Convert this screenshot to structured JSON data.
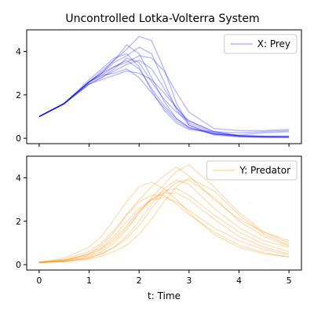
{
  "title": "Uncontrolled Lotka-Volterra System",
  "colors": {
    "prey": "#0000ff",
    "predator": "#ff8c00",
    "axis": "#000000"
  },
  "chart_data": [
    {
      "type": "line",
      "title": "Uncontrolled Lotka-Volterra System",
      "legend": {
        "label": "X: Prey",
        "placement": "top-right"
      },
      "xlabel": "",
      "ylabel": "",
      "xlim": [
        -0.25,
        5.25
      ],
      "ylim": [
        -0.25,
        5.0
      ],
      "x_ticks": [
        0,
        1,
        2,
        3,
        4,
        5
      ],
      "x_tick_labels_shown": false,
      "y_ticks": [
        0,
        2,
        4
      ],
      "y_tick_labels": [
        "0",
        "2",
        "4"
      ],
      "x": [
        0,
        0.5,
        1.0,
        1.25,
        1.5,
        1.75,
        2.0,
        2.25,
        2.5,
        2.75,
        3.0,
        3.5,
        4.0,
        4.5,
        5.0
      ],
      "series": [
        {
          "values": [
            1.0,
            1.6,
            2.6,
            3.1,
            3.6,
            4.1,
            4.7,
            4.5,
            3.2,
            1.6,
            0.6,
            0.15,
            0.06,
            0.05,
            0.05
          ]
        },
        {
          "values": [
            1.0,
            1.6,
            2.6,
            3.0,
            3.3,
            3.5,
            3.8,
            3.7,
            3.1,
            2.1,
            1.2,
            0.45,
            0.35,
            0.35,
            0.4
          ]
        },
        {
          "values": [
            1.0,
            1.6,
            2.6,
            3.0,
            3.6,
            4.3,
            3.9,
            2.8,
            1.7,
            0.9,
            0.5,
            0.2,
            0.1,
            0.08,
            0.07
          ]
        },
        {
          "values": [
            1.0,
            1.6,
            2.5,
            2.8,
            3.2,
            3.7,
            3.5,
            2.6,
            1.8,
            1.2,
            0.8,
            0.3,
            0.1,
            0.06,
            0.05
          ]
        },
        {
          "values": [
            1.0,
            1.6,
            2.6,
            2.9,
            3.3,
            3.6,
            3.2,
            2.3,
            1.5,
            0.9,
            0.5,
            0.2,
            0.15,
            0.25,
            0.3
          ]
        },
        {
          "values": [
            1.0,
            1.6,
            2.5,
            2.7,
            2.9,
            3.1,
            3.0,
            2.7,
            2.1,
            1.4,
            0.8,
            0.3,
            0.12,
            0.08,
            0.06
          ]
        },
        {
          "values": [
            1.0,
            1.6,
            2.7,
            3.2,
            3.7,
            3.9,
            3.3,
            2.2,
            1.3,
            0.7,
            0.4,
            0.3,
            0.25,
            0.3,
            0.35
          ]
        },
        {
          "values": [
            1.0,
            1.6,
            2.6,
            3.0,
            3.5,
            3.8,
            4.2,
            3.9,
            2.6,
            1.3,
            0.6,
            0.2,
            0.1,
            0.07,
            0.06
          ]
        },
        {
          "values": [
            1.0,
            1.6,
            2.5,
            2.8,
            3.1,
            3.4,
            3.6,
            3.2,
            2.3,
            1.4,
            0.7,
            0.25,
            0.12,
            0.1,
            0.1
          ]
        },
        {
          "values": [
            1.0,
            1.6,
            2.6,
            2.9,
            3.0,
            3.2,
            2.8,
            2.1,
            1.4,
            0.8,
            0.45,
            0.2,
            0.08,
            0.05,
            0.05
          ]
        }
      ]
    },
    {
      "type": "line",
      "legend": {
        "label": "Y: Predator",
        "placement": "top-right"
      },
      "xlabel": "t: Time",
      "ylabel": "",
      "xlim": [
        -0.25,
        5.25
      ],
      "ylim": [
        -0.25,
        5.0
      ],
      "x_ticks": [
        0,
        1,
        2,
        3,
        4,
        5
      ],
      "x_tick_labels": [
        "0",
        "1",
        "2",
        "3",
        "4",
        "5"
      ],
      "y_ticks": [
        0,
        2,
        4
      ],
      "y_tick_labels": [
        "0",
        "2",
        "4"
      ],
      "x": [
        0,
        0.5,
        1.0,
        1.25,
        1.5,
        1.75,
        2.0,
        2.25,
        2.5,
        2.75,
        3.0,
        3.5,
        4.0,
        4.5,
        5.0
      ],
      "series": [
        {
          "values": [
            0.1,
            0.2,
            0.5,
            0.9,
            1.5,
            2.3,
            3.0,
            3.6,
            4.1,
            4.5,
            4.1,
            3.0,
            2.1,
            1.5,
            1.1
          ]
        },
        {
          "values": [
            0.1,
            0.15,
            0.3,
            0.5,
            0.8,
            1.3,
            2.0,
            2.8,
            3.5,
            3.9,
            3.7,
            2.6,
            1.7,
            1.1,
            0.8
          ]
        },
        {
          "values": [
            0.1,
            0.3,
            0.8,
            1.3,
            2.1,
            2.9,
            3.6,
            3.8,
            3.5,
            3.0,
            2.4,
            1.4,
            0.8,
            0.5,
            0.35
          ]
        },
        {
          "values": [
            0.1,
            0.15,
            0.25,
            0.4,
            0.6,
            0.9,
            1.4,
            2.1,
            2.9,
            3.6,
            4.0,
            3.4,
            2.3,
            1.4,
            0.9
          ]
        },
        {
          "values": [
            0.1,
            0.2,
            0.4,
            0.7,
            1.1,
            1.7,
            2.4,
            3.0,
            3.3,
            3.3,
            3.0,
            2.1,
            1.3,
            0.8,
            0.5
          ]
        },
        {
          "values": [
            0.1,
            0.2,
            0.5,
            0.8,
            1.3,
            2.0,
            2.6,
            3.0,
            3.1,
            2.9,
            2.5,
            1.7,
            1.1,
            0.7,
            0.45
          ]
        },
        {
          "values": [
            0.1,
            0.15,
            0.35,
            0.6,
            1.0,
            1.6,
            2.4,
            3.1,
            3.7,
            4.3,
            4.6,
            3.6,
            2.4,
            1.5,
            1.0
          ]
        },
        {
          "values": [
            0.1,
            0.25,
            0.6,
            1.0,
            1.6,
            2.3,
            2.9,
            3.2,
            3.2,
            2.8,
            2.3,
            1.5,
            0.9,
            0.55,
            0.35
          ]
        },
        {
          "values": [
            0.1,
            0.15,
            0.3,
            0.5,
            0.8,
            1.2,
            1.8,
            2.6,
            3.3,
            3.8,
            3.9,
            3.1,
            2.0,
            1.3,
            0.85
          ]
        },
        {
          "values": [
            0.1,
            0.2,
            0.45,
            0.75,
            1.2,
            1.8,
            2.5,
            3.0,
            3.4,
            3.5,
            3.2,
            2.3,
            1.5,
            0.95,
            0.6
          ]
        }
      ]
    }
  ]
}
